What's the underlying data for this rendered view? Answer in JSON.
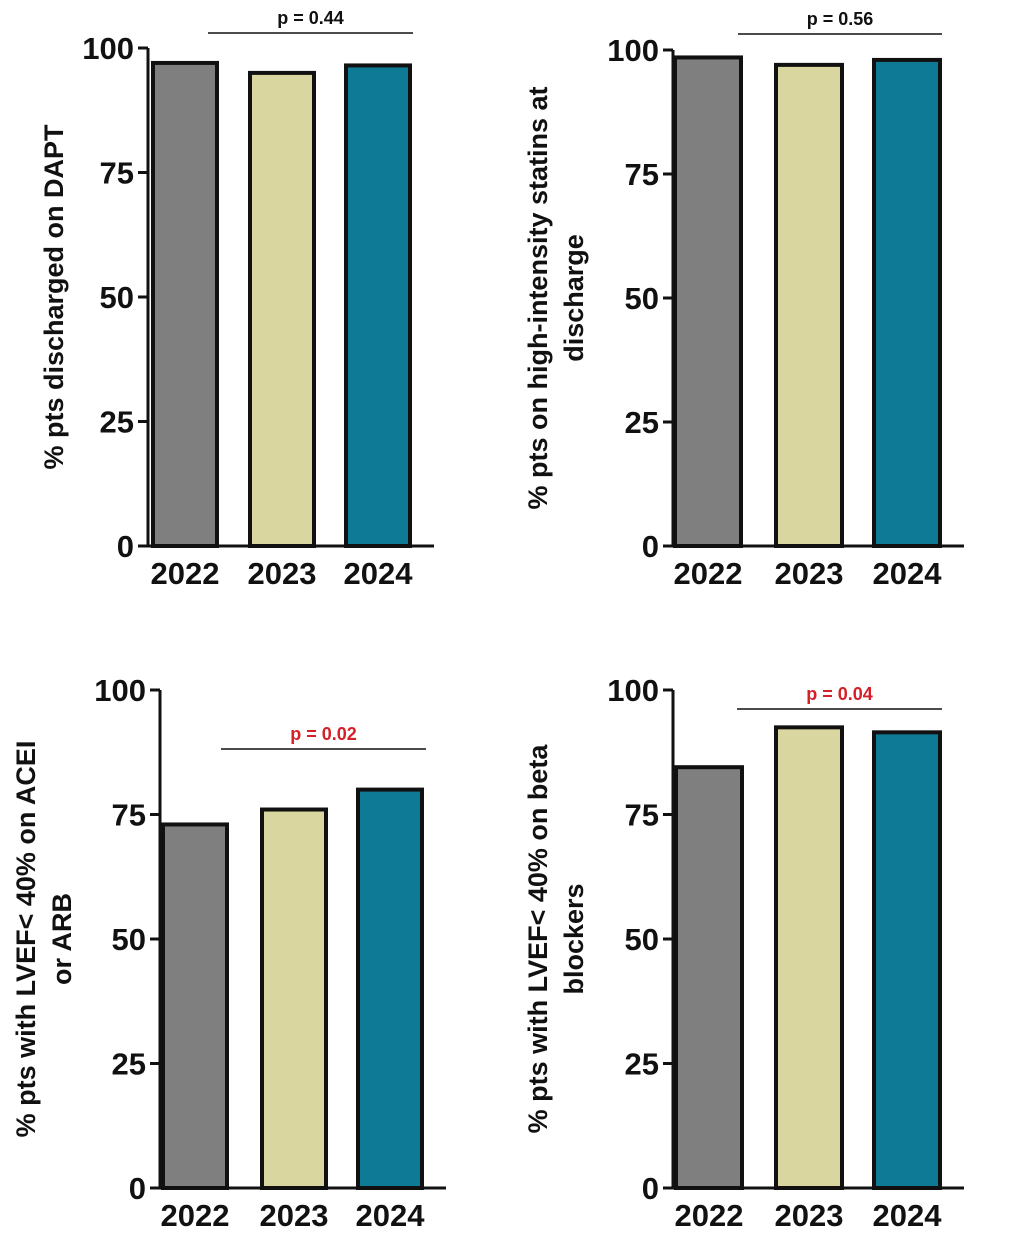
{
  "colors": {
    "bar_2022": "#7f7f7f",
    "bar_2023": "#d9d79f",
    "bar_2024": "#0e7a96",
    "outline": "#111111",
    "p_significant": "#d62028",
    "p_normal": "#111111"
  },
  "chart_data": [
    {
      "type": "bar",
      "categories": [
        "2022",
        "2023",
        "2024"
      ],
      "values": [
        97,
        95,
        96.5
      ],
      "ylabel_lines": [
        "% pts discharged on DAPT"
      ],
      "ylim": [
        0,
        100
      ],
      "yticks": [
        "0",
        "25",
        "50",
        "75",
        "100"
      ],
      "p_label": "p = 0.44",
      "p_significant": false
    },
    {
      "type": "bar",
      "categories": [
        "2022",
        "2023",
        "2024"
      ],
      "values": [
        98.5,
        97,
        98
      ],
      "ylabel_lines": [
        "% pts on high-intensity statins at",
        "discharge"
      ],
      "ylim": [
        0,
        100
      ],
      "yticks": [
        "0",
        "25",
        "50",
        "75",
        "100"
      ],
      "p_label": "p = 0.56",
      "p_significant": false
    },
    {
      "type": "bar",
      "categories": [
        "2022",
        "2023",
        "2024"
      ],
      "values": [
        73,
        76,
        80
      ],
      "ylabel_lines": [
        "% pts with LVEF< 40% on ACEI",
        "or ARB"
      ],
      "ylim": [
        0,
        100
      ],
      "yticks": [
        "0",
        "25",
        "50",
        "75",
        "100"
      ],
      "p_label": "p = 0.02",
      "p_significant": true
    },
    {
      "type": "bar",
      "categories": [
        "2022",
        "2023",
        "2024"
      ],
      "values": [
        84.5,
        92.5,
        91.5
      ],
      "ylabel_lines": [
        "% pts with LVEF< 40% on beta",
        "blockers"
      ],
      "ylim": [
        0,
        100
      ],
      "yticks": [
        "0",
        "25",
        "50",
        "75",
        "100"
      ],
      "p_label": "p = 0.04",
      "p_significant": true
    }
  ]
}
